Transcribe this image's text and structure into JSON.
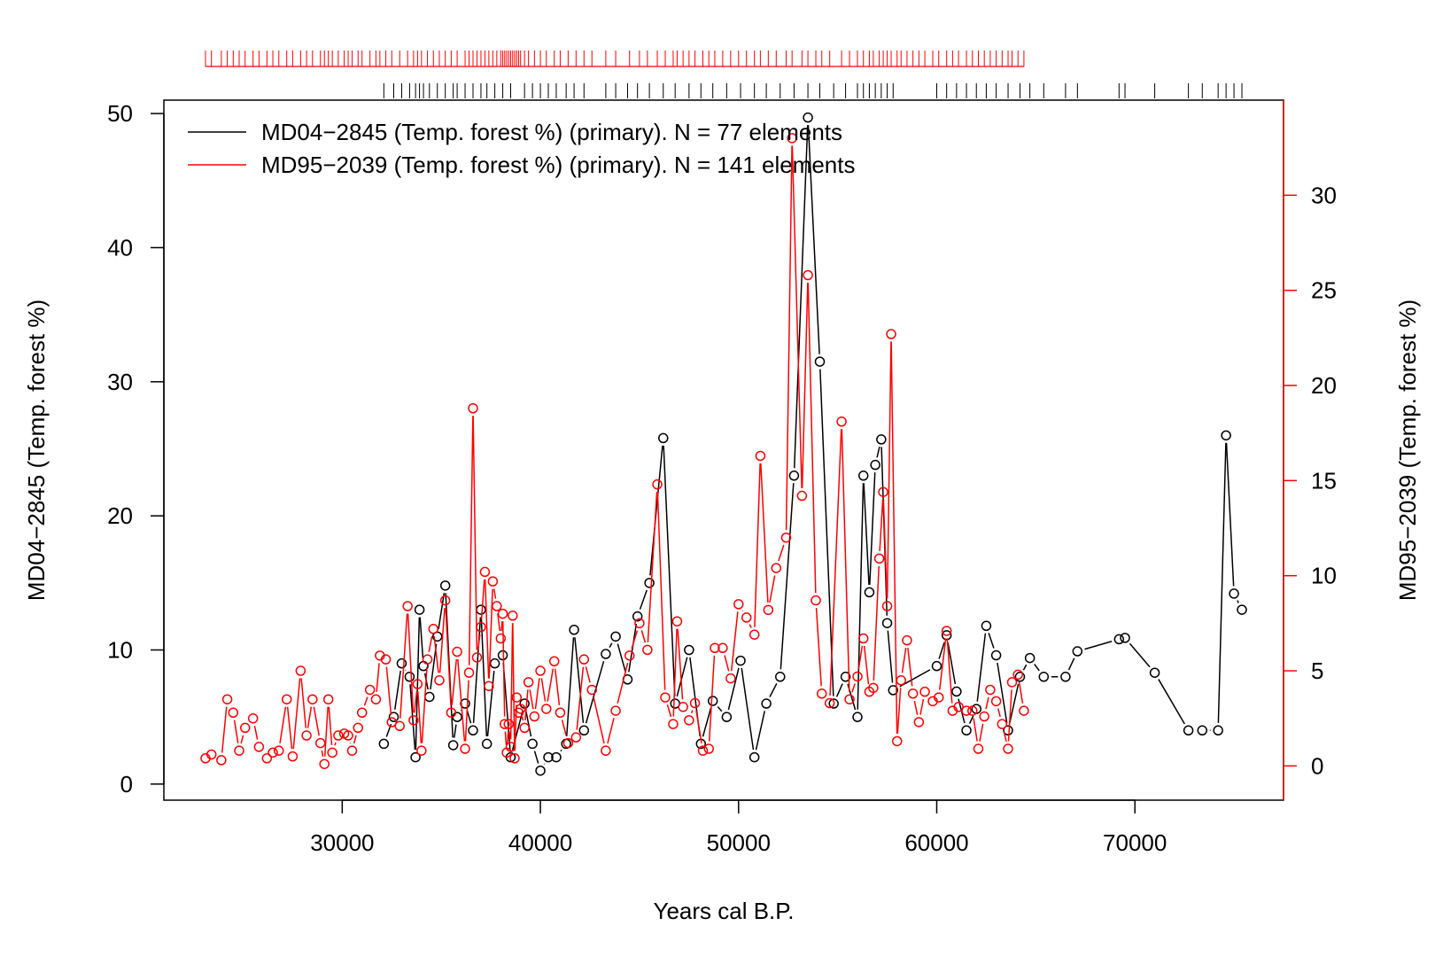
{
  "chart_data": {
    "type": "line",
    "xlabel": "Years cal B.P.",
    "ylabel_left": "MD04−2845 (Temp. forest %)",
    "ylabel_right": "MD95−2039 (Temp. forest %)",
    "xlim": [
      21000,
      77500
    ],
    "ylim_left": [
      -1.2,
      51
    ],
    "ylim_right": [
      -1.8,
      35
    ],
    "x_ticks": [
      30000,
      40000,
      50000,
      60000,
      70000
    ],
    "y_left_ticks": [
      0,
      10,
      20,
      30,
      40,
      50
    ],
    "y_right_ticks": [
      0,
      5,
      10,
      15,
      20,
      25,
      30
    ],
    "grid": false,
    "legend_position": "top-left",
    "legend": [
      {
        "label": "MD04−2845 (Temp. forest %) (primary).  N = 77 elements",
        "color": "#000000"
      },
      {
        "label": "MD95−2039 (Temp. forest %) (primary).  N = 141 elements",
        "color": "#ff0000"
      }
    ],
    "series": [
      {
        "name": "MD04−2845 (Temp. forest %)",
        "axis": "left",
        "color": "#000000",
        "points": [
          [
            32100,
            3.0
          ],
          [
            32600,
            5.0
          ],
          [
            33000,
            9.0
          ],
          [
            33400,
            8.0
          ],
          [
            33700,
            2.0
          ],
          [
            33900,
            13.0
          ],
          [
            34100,
            8.8
          ],
          [
            34400,
            6.5
          ],
          [
            34800,
            11.0
          ],
          [
            35200,
            14.8
          ],
          [
            35600,
            2.9
          ],
          [
            35800,
            5.0
          ],
          [
            36200,
            6.0
          ],
          [
            36600,
            4.0
          ],
          [
            37000,
            13.0
          ],
          [
            37300,
            3.0
          ],
          [
            37700,
            9.0
          ],
          [
            38100,
            9.6
          ],
          [
            38500,
            2.0
          ],
          [
            39200,
            6.0
          ],
          [
            39600,
            3.0
          ],
          [
            40000,
            1.0
          ],
          [
            40400,
            2.0
          ],
          [
            40800,
            2.0
          ],
          [
            41300,
            3.0
          ],
          [
            41700,
            11.5
          ],
          [
            42200,
            4.0
          ],
          [
            43300,
            9.7
          ],
          [
            43800,
            11.0
          ],
          [
            44400,
            7.8
          ],
          [
            44900,
            12.5
          ],
          [
            45500,
            15.0
          ],
          [
            46200,
            25.8
          ],
          [
            46800,
            6.0
          ],
          [
            47500,
            10.0
          ],
          [
            48100,
            3.0
          ],
          [
            48700,
            6.2
          ],
          [
            49400,
            5.0
          ],
          [
            50100,
            9.2
          ],
          [
            50800,
            2.0
          ],
          [
            51400,
            6.0
          ],
          [
            52100,
            8.0
          ],
          [
            52800,
            23.0
          ],
          [
            53500,
            49.7
          ],
          [
            54100,
            31.5
          ],
          [
            54800,
            6.0
          ],
          [
            55400,
            8.0
          ],
          [
            56000,
            5.0
          ],
          [
            56300,
            23.0
          ],
          [
            56600,
            14.3
          ],
          [
            56900,
            23.8
          ],
          [
            57200,
            25.7
          ],
          [
            57500,
            12.0
          ],
          [
            57800,
            7.0
          ],
          [
            60000,
            8.8
          ],
          [
            60500,
            11.1
          ],
          [
            61000,
            6.9
          ],
          [
            61500,
            4.0
          ],
          [
            62000,
            5.6
          ],
          [
            62500,
            11.8
          ],
          [
            63000,
            9.6
          ],
          [
            63600,
            4.0
          ],
          [
            64200,
            8.0
          ],
          [
            64700,
            9.4
          ],
          [
            65400,
            8.0
          ],
          [
            66500,
            8.0
          ],
          [
            67100,
            9.9
          ],
          [
            69200,
            10.8
          ],
          [
            69500,
            10.9
          ],
          [
            71000,
            8.3
          ],
          [
            72700,
            4.0
          ],
          [
            73400,
            4.0
          ],
          [
            74200,
            4.0
          ],
          [
            74600,
            26.0
          ],
          [
            75000,
            14.2
          ],
          [
            75400,
            13.0
          ]
        ]
      },
      {
        "name": "MD95−2039 (Temp. forest %)",
        "axis": "right",
        "color": "#ff0000",
        "points": [
          [
            23100,
            0.4
          ],
          [
            23400,
            0.6
          ],
          [
            23900,
            0.3
          ],
          [
            24200,
            3.5
          ],
          [
            24500,
            2.8
          ],
          [
            24800,
            0.8
          ],
          [
            25100,
            2.0
          ],
          [
            25500,
            2.5
          ],
          [
            25800,
            1.0
          ],
          [
            26200,
            0.4
          ],
          [
            26500,
            0.7
          ],
          [
            26800,
            0.8
          ],
          [
            27200,
            3.5
          ],
          [
            27500,
            0.5
          ],
          [
            27900,
            5.0
          ],
          [
            28200,
            1.6
          ],
          [
            28500,
            3.5
          ],
          [
            28900,
            1.2
          ],
          [
            29100,
            0.1
          ],
          [
            29300,
            3.5
          ],
          [
            29500,
            0.7
          ],
          [
            29800,
            1.6
          ],
          [
            30100,
            1.7
          ],
          [
            30300,
            1.6
          ],
          [
            30500,
            0.8
          ],
          [
            30800,
            2.0
          ],
          [
            31000,
            2.8
          ],
          [
            31400,
            4.0
          ],
          [
            31700,
            3.5
          ],
          [
            31900,
            5.8
          ],
          [
            32200,
            5.6
          ],
          [
            32500,
            2.3
          ],
          [
            32900,
            2.1
          ],
          [
            33300,
            8.4
          ],
          [
            33600,
            2.4
          ],
          [
            33800,
            4.3
          ],
          [
            34000,
            0.8
          ],
          [
            34300,
            5.6
          ],
          [
            34600,
            7.2
          ],
          [
            34900,
            4.5
          ],
          [
            35200,
            8.7
          ],
          [
            35500,
            2.8
          ],
          [
            35800,
            6.0
          ],
          [
            36200,
            0.9
          ],
          [
            36400,
            4.9
          ],
          [
            36600,
            18.8
          ],
          [
            36800,
            5.7
          ],
          [
            37000,
            7.3
          ],
          [
            37200,
            10.2
          ],
          [
            37400,
            4.2
          ],
          [
            37600,
            9.7
          ],
          [
            37800,
            8.4
          ],
          [
            38000,
            6.7
          ],
          [
            38100,
            8.0
          ],
          [
            38200,
            2.2
          ],
          [
            38300,
            0.7
          ],
          [
            38400,
            2.2
          ],
          [
            38500,
            1.0
          ],
          [
            38600,
            7.9
          ],
          [
            38700,
            0.4
          ],
          [
            38800,
            3.6
          ],
          [
            38900,
            2.8
          ],
          [
            39000,
            3.0
          ],
          [
            39200,
            2.0
          ],
          [
            39400,
            4.4
          ],
          [
            39700,
            2.6
          ],
          [
            40000,
            5.0
          ],
          [
            40300,
            3.0
          ],
          [
            40700,
            5.5
          ],
          [
            41000,
            2.8
          ],
          [
            41400,
            1.2
          ],
          [
            41800,
            1.5
          ],
          [
            42200,
            5.6
          ],
          [
            42600,
            4.0
          ],
          [
            43300,
            0.8
          ],
          [
            43800,
            2.9
          ],
          [
            44500,
            5.8
          ],
          [
            45000,
            7.5
          ],
          [
            45400,
            6.1
          ],
          [
            45900,
            14.8
          ],
          [
            46300,
            3.6
          ],
          [
            46700,
            2.2
          ],
          [
            46900,
            7.6
          ],
          [
            47200,
            3.1
          ],
          [
            47500,
            2.4
          ],
          [
            47800,
            3.3
          ],
          [
            48200,
            0.8
          ],
          [
            48500,
            0.9
          ],
          [
            48800,
            6.2
          ],
          [
            49200,
            6.2
          ],
          [
            49600,
            4.6
          ],
          [
            50000,
            8.5
          ],
          [
            50400,
            7.8
          ],
          [
            50800,
            6.9
          ],
          [
            51100,
            16.3
          ],
          [
            51500,
            8.2
          ],
          [
            51900,
            10.4
          ],
          [
            52400,
            12.0
          ],
          [
            52700,
            33.0
          ],
          [
            53200,
            14.2
          ],
          [
            53500,
            25.8
          ],
          [
            53900,
            8.7
          ],
          [
            54200,
            3.8
          ],
          [
            54600,
            3.3
          ],
          [
            55200,
            18.1
          ],
          [
            55600,
            3.5
          ],
          [
            56000,
            4.7
          ],
          [
            56300,
            6.7
          ],
          [
            56600,
            3.9
          ],
          [
            56800,
            4.1
          ],
          [
            57100,
            10.9
          ],
          [
            57300,
            14.4
          ],
          [
            57500,
            8.4
          ],
          [
            57700,
            22.7
          ],
          [
            58000,
            1.3
          ],
          [
            58200,
            4.5
          ],
          [
            58500,
            6.6
          ],
          [
            58800,
            3.8
          ],
          [
            59100,
            2.3
          ],
          [
            59400,
            3.9
          ],
          [
            59800,
            3.4
          ],
          [
            60100,
            3.6
          ],
          [
            60500,
            7.1
          ],
          [
            60800,
            2.9
          ],
          [
            61100,
            3.1
          ],
          [
            61500,
            2.9
          ],
          [
            61800,
            2.9
          ],
          [
            62100,
            0.9
          ],
          [
            62400,
            2.6
          ],
          [
            62700,
            4.0
          ],
          [
            63000,
            3.4
          ],
          [
            63300,
            2.2
          ],
          [
            63600,
            0.9
          ],
          [
            63800,
            4.4
          ],
          [
            64100,
            4.8
          ],
          [
            64400,
            2.9
          ]
        ]
      }
    ],
    "rug_top_red_count": 141,
    "rug_top_black_count": 77
  }
}
